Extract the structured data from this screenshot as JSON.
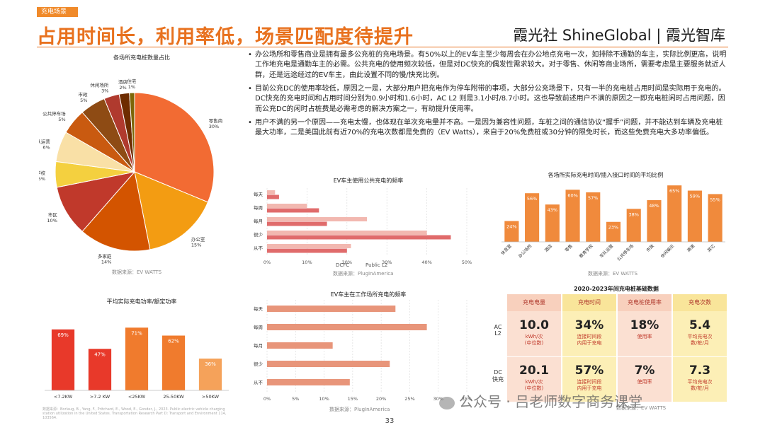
{
  "header": {
    "tag": "充电场景",
    "title": "占用时间长，利用率低，场景匹配度待提升",
    "brand": "霞光社 ShineGlobal | 霞光智库"
  },
  "paragraphs": [
    [
      {
        "t": "办公场所和零售商业是拥有最多公充桩的充电场景。有50%以上的EV车主至少每周会在办公地点充电一次，如排除不通勤的车主，实际比例更高，说明工作地充电是通勤车主的必需。公共充电的使用频次较低，但是对DC快充的偶发性需求较大。对于零售、休闲等商业场所，需要考虑是主要服务就近人群，还是远途经过的EV车主，由此设置不同的慢/快充比例。",
        "h": false
      }
    ],
    [
      {
        "t": "目前公充DC的使用率较低，原因之一是，大部分用户把充电作为停车附带的事项，大部分公充场景下，只有一半的充电桩占用时间是实际用于充电的。DC快充的充电时间和占用时间分别为0.9小时和1.6小时，AC L2 则是3.1小时/8.7小时。这也导致前述用户不满的原因之一即充电桩闲时占用问题，因而公充DC的闲时占桩费是必需考虑的解决方案之一，有助提升使用率。",
        "h": false
      }
    ],
    [
      {
        "t": "用户不满的另一个原因——充电太慢，也体现在单次充电量并不高。一是因为兼容性问题，车桩之间的通信协议“握手”问题，并不能达到车辆及充电桩最大功率，二是美国此前有近70%的充电次数都是免费的（EV Watts），来自于20%免费桩或30分钟的限免时长，而这些免费充电大多功率偏低。",
        "h": false
      }
    ]
  ],
  "pie": {
    "title": "各场所充电桩数量占比",
    "source": "数据来源：EV WATTS",
    "slices": [
      {
        "label": "零售商",
        "pct": "30%",
        "value": 30,
        "color": "#f26b33"
      },
      {
        "label": "办公室",
        "pct": "15%",
        "value": 15,
        "color": "#f39c12"
      },
      {
        "label": "多家庭",
        "pct": "14%",
        "value": 14,
        "color": "#d35400"
      },
      {
        "label": "市区",
        "pct": "10%",
        "value": 10,
        "color": "#c0392b"
      },
      {
        "label": "国际学校",
        "pct": "5%",
        "value": 5,
        "color": "#f4d03f"
      },
      {
        "label": "车队运营",
        "pct": "6%",
        "value": 6,
        "color": "#f9e0a6"
      },
      {
        "label": "公共停车场",
        "pct": "5%",
        "value": 5,
        "color": "#c95a10"
      },
      {
        "label": "市政",
        "pct": "5%",
        "value": 5,
        "color": "#8e4b14"
      },
      {
        "label": "休闲场所",
        "pct": "3%",
        "value": 3,
        "color": "#b03a2e"
      },
      {
        "label": "酒店",
        "pct": "2%",
        "value": 2,
        "color": "#6e2c00"
      },
      {
        "label": "住宅",
        "pct": "1%",
        "value": 1,
        "color": "#7d6608"
      }
    ]
  },
  "freq_public": {
    "title": "EV车主使用公共充电的频率",
    "source": "数据来源：PlugInAmerica",
    "categories": [
      "每天",
      "每周",
      "每月",
      "很少",
      "从不"
    ],
    "series": [
      {
        "name": "DCFC",
        "values": [
          2,
          10,
          25,
          40,
          21
        ],
        "color": "#f2b8b0"
      },
      {
        "name": "Public L2",
        "values": [
          3,
          13,
          15,
          46,
          20
        ],
        "color": "#e06b6b"
      }
    ],
    "ticks": [
      "0%",
      "10%",
      "20%",
      "30%",
      "40%",
      "50%"
    ],
    "xmax": 50
  },
  "occupancy": {
    "title": "各场所实际充电时间/插入接口时间的平均比例",
    "source": "数据来源：EV WATTS",
    "categories": [
      "休息室",
      "办公场所",
      "酒店",
      "零售",
      "教育学校",
      "车队运营",
      "公共停车场",
      "市政",
      "休闲娱乐",
      "高速",
      "其它"
    ],
    "values": [
      24,
      56,
      43,
      60,
      57,
      23,
      38,
      48,
      65,
      59,
      55
    ],
    "labels": [
      "24%",
      "56%",
      "43%",
      "60%",
      "57%",
      "23%",
      "38%",
      "48%",
      "65%",
      "59%",
      "55%"
    ],
    "ymax": 70
  },
  "power": {
    "title": "平均实际充电功率/额定功率",
    "categories": [
      "<7.2KW",
      ">7.2 KW",
      "<25KW",
      "25-50KW",
      ">50KW"
    ],
    "values": [
      69,
      47,
      71,
      62,
      36
    ],
    "labels": [
      "69%",
      "47%",
      "71%",
      "62%",
      "36%"
    ],
    "colors": [
      "#e8392a",
      "#e8392a",
      "#f07b2d",
      "#f07b2d",
      "#f5a25a"
    ],
    "ymax": 80,
    "source": "数据来源：Borlaug, B., Yang, F., Pritchard, E., Wood, E., Gonder, J., 2023. Public electric vehicle charging station utilization in the United States. Transportation Research Part D: Transport and Environment 114, 103564."
  },
  "freq_work": {
    "title": "EV车主在工作场所充电的频率",
    "source": "数据来源：PlugInAmerica",
    "categories": [
      "每天",
      "每周",
      "每月",
      "很少",
      "从不"
    ],
    "values": [
      22.5,
      28,
      11.5,
      21.5,
      14.5
    ],
    "color": "#e8957a",
    "ticks": [
      "0%",
      "5%",
      "10%",
      "15%",
      "20%",
      "25%",
      "30%",
      "35%"
    ],
    "xmax": 35
  },
  "table": {
    "title": "2020-2023年间充电桩基础数据",
    "source": "数据来源：EV WATTS",
    "headers": [
      "充电电量",
      "充电时间",
      "充电桩使用率",
      "充电次数"
    ],
    "row_labels": [
      "AC\nL2",
      "DC\n快充"
    ],
    "rows": [
      [
        {
          "big": "10.0",
          "small": "kWh/次\n(中位数)"
        },
        {
          "big": "34%",
          "small": "连接时间段\n内用于充电"
        },
        {
          "big": "18%",
          "small": "使用率"
        },
        {
          "big": "5.4",
          "small": "平均充电次\n数/桩/月"
        }
      ],
      [
        {
          "big": "20.1",
          "small": "kWh/次\n(中位数)"
        },
        {
          "big": "57%",
          "small": "连接时间段\n内用于充电"
        },
        {
          "big": "7%",
          "small": "使用率"
        },
        {
          "big": "7.3",
          "small": "平均充电次\n数/桩/月"
        }
      ]
    ],
    "col_colors": [
      "#fbe0d2",
      "#fcefb6",
      "#fbe0d2",
      "#fcefb6"
    ],
    "header_colors": [
      "#f8d0bd",
      "#f9e59a",
      "#f8d0bd",
      "#f9e59a"
    ]
  },
  "page_number": "33",
  "watermark": "公众号 · 吕老师数字商务课堂"
}
